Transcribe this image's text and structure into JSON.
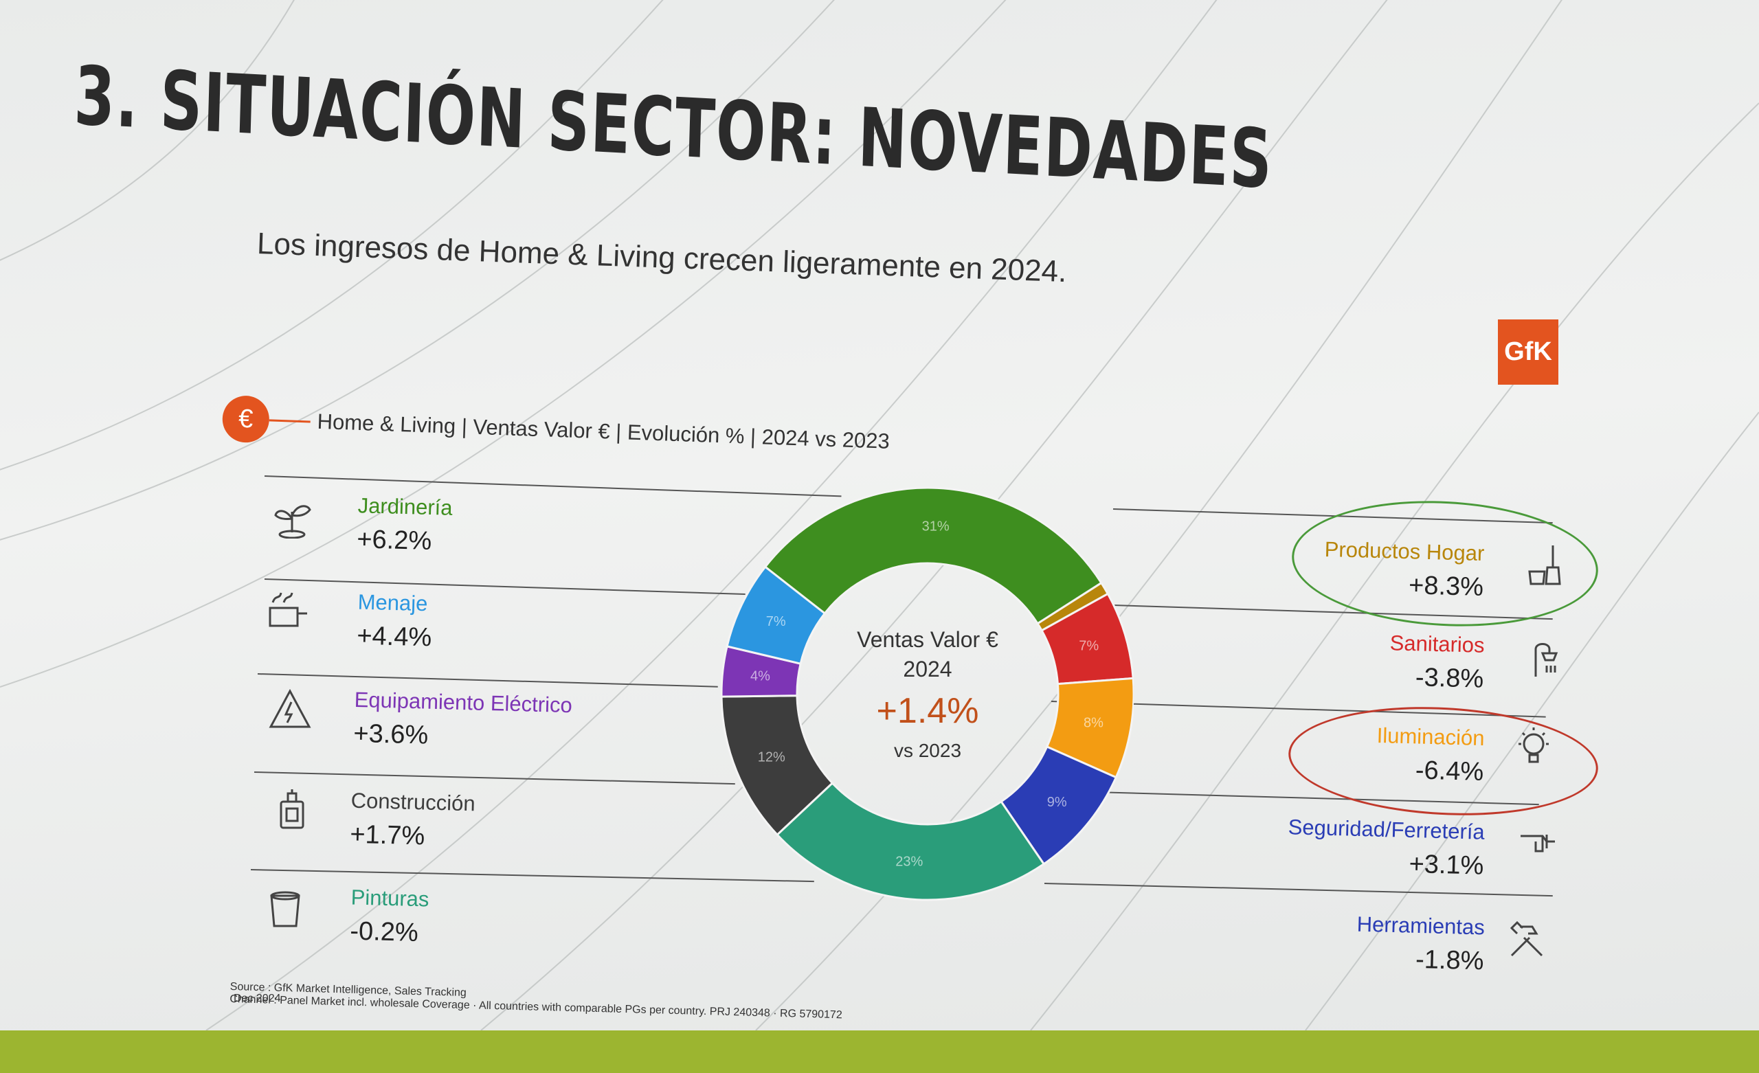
{
  "title": "3. SITUACIÓN SECTOR: NOVEDADES",
  "subtitle": "Los ingresos de Home & Living crecen ligeramente en 2024.",
  "brand": "GfK",
  "currency_symbol": "€",
  "chart_caption": "Home & Living | Ventas Valor € | Evolución % | 2024 vs 2023",
  "colors": {
    "accent": "#e3541f",
    "band": "#9cb530",
    "highlight_good": "#4a9a3a",
    "highlight_bad": "#c0392b"
  },
  "chart_data": {
    "type": "pie",
    "center_label": "Ventas Valor €",
    "center_year": "2024",
    "center_value": "+1.4%",
    "center_compare": "vs 2023",
    "slices": [
      {
        "label": "31%",
        "value": 31,
        "color": "#3e8e1f"
      },
      {
        "label": "",
        "value": 1,
        "color": "#b8860b"
      },
      {
        "label": "7%",
        "value": 7,
        "color": "#d62a2a"
      },
      {
        "label": "8%",
        "value": 8,
        "color": "#f39c12"
      },
      {
        "label": "9%",
        "value": 9,
        "color": "#2a3db5"
      },
      {
        "label": "23%",
        "value": 23,
        "color": "#2a9d7a"
      },
      {
        "label": "12%",
        "value": 12,
        "color": "#3d3d3d"
      },
      {
        "label": "4%",
        "value": 4,
        "color": "#7d35b5"
      },
      {
        "label": "7%",
        "value": 7,
        "color": "#2b96e0"
      }
    ]
  },
  "categories_left": [
    {
      "name": "Jardinería",
      "value": "+6.2%",
      "icon": "plant-icon",
      "color": "#3e8e1f"
    },
    {
      "name": "Menaje",
      "value": "+4.4%",
      "icon": "pot-icon",
      "color": "#2b96e0"
    },
    {
      "name": "Equipamiento Eléctrico",
      "value": "+3.6%",
      "icon": "electric-icon",
      "color": "#7d35b5"
    },
    {
      "name": "Construcción",
      "value": "+1.7%",
      "icon": "bottle-icon",
      "color": "#3d3d3d"
    },
    {
      "name": "Pinturas",
      "value": "-0.2%",
      "icon": "paint-icon",
      "color": "#2a9d7a"
    }
  ],
  "categories_right": [
    {
      "name": "Productos Hogar",
      "value": "+8.3%",
      "icon": "cleaning-icon",
      "color": "#b8860b"
    },
    {
      "name": "Sanitarios",
      "value": "-3.8%",
      "icon": "shower-icon",
      "color": "#d62a2a"
    },
    {
      "name": "Iluminación",
      "value": "-6.4%",
      "icon": "bulb-icon",
      "color": "#f39c12"
    },
    {
      "name": "Seguridad/Ferretería",
      "value": "+3.1%",
      "icon": "drill-icon",
      "color": "#2a3db5"
    },
    {
      "name": "Herramientas",
      "value": "-1.8%",
      "icon": "hammer-icon",
      "color": "#2a3db5"
    }
  ],
  "footnote_source": "Source : GfK Market Intelligence, Sales Tracking",
  "footnote_channel": "Channel : Panel Market incl. wholesale Coverage · All countries with comparable PGs per country. PRJ 240348 · RG 5790172",
  "report_date": "Dec 2024"
}
